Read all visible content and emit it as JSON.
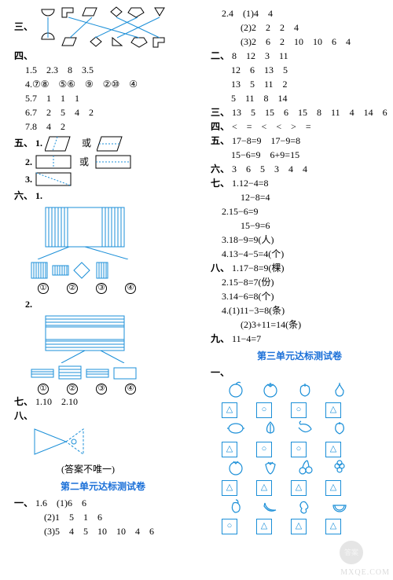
{
  "colors": {
    "ink": "#000000",
    "blue": "#1b8fd8",
    "blue_dark": "#1b70d8",
    "fill_hatch": "#9fd7e8",
    "bg": "#ffffff"
  },
  "left": {
    "sec3_label": "三、",
    "sec3_match": {
      "top_shapes": [
        "halfcircle",
        "Lshape",
        "parallelogram",
        "diamond",
        "pentagon",
        "triangle"
      ],
      "bottom_shapes": [
        "halfcircle_alt",
        "parallelogram_alt",
        "diamond_alt",
        "triangle_alt",
        "pentagon_alt",
        "Lshape_alt"
      ],
      "cross_lines": [
        [
          0,
          0
        ],
        [
          1,
          4
        ],
        [
          2,
          1
        ],
        [
          3,
          5
        ],
        [
          4,
          2
        ],
        [
          5,
          3
        ]
      ],
      "line_color": "#1b8fd8"
    },
    "sec4_label": "四、",
    "sec4_lines": [
      "1.5　2.3　8　3.5",
      "4.⑦⑧　⑤⑥　⑨　②⑩　④",
      "5.7　1　1　1",
      "6.7　2　5　4　2",
      "7.8　4　2"
    ],
    "sec5_label": "五、",
    "sec5": {
      "item1": {
        "label": "1.",
        "join": "或"
      },
      "item2": {
        "label": "2.",
        "join": "或"
      },
      "item3": {
        "label": "3."
      }
    },
    "sec6_label": "六、",
    "sec6": {
      "item1": {
        "label": "1."
      },
      "item1_options": [
        "①",
        "②",
        "③",
        "④"
      ],
      "item2": {
        "label": "2."
      },
      "item2_options": [
        "①",
        "②",
        "③",
        "④"
      ]
    },
    "sec7_label": "七、",
    "sec7_text": "1.10　2.10",
    "sec8_label": "八、",
    "sec8_answer_hint": "(答案不唯一)",
    "unit2_title": "第二单元达标测试卷",
    "unit2_sec1_label": "一、",
    "unit2_sec1_lines": [
      "1.6　(1)6　6",
      "　　(2)1　5　1　6",
      "　　(3)5　4　5　10　10　4　6"
    ]
  },
  "right": {
    "top_block": [
      "2.4　(1)4　4",
      "　　(2)2　2　2　4",
      "　　(3)2　6　2　10　10　6　4"
    ],
    "sec2_label": "二、",
    "sec2_lines": [
      "8　12　3　11",
      "12　6　13　5",
      "13　5　11　2",
      "5　11　8　14"
    ],
    "sec3_label": "三、",
    "sec3_text": "13　5　15　6　15　8　11　4　14　6",
    "sec4_label": "四、",
    "sec4_text": "<　=　<　<　>　=",
    "sec5_label": "五、",
    "sec5_lines": [
      "17−8=9　17−9=8",
      "15−6=9　6+9=15"
    ],
    "sec6_label": "六、",
    "sec6_text": "3　6　5　3　4　4",
    "sec7_label": "七、",
    "sec7_lines": [
      "1.12−4=8",
      "　12−8=4",
      "2.15−6=9",
      "　15−9=6",
      "3.18−9=9(人)",
      "4.13−4−5=4(个)"
    ],
    "sec8_label": "八、",
    "sec8_lines": [
      "1.17−8=9(棵)",
      "2.15−8=7(份)",
      "3.14−6=8(个)",
      "4.(1)11−3=8(条)",
      "　(2)3+11=14(条)"
    ],
    "sec9_label": "九、",
    "sec9_text": "11−4=7",
    "unit3_title": "第三单元达标测试卷",
    "unit3_sec1_label": "一、",
    "fruit_grid": {
      "rows": 4,
      "cols": 4,
      "fruits": [
        [
          "peach",
          "tomato",
          "bellpepper",
          "pear"
        ],
        [
          "lemon",
          "garlic",
          "chili",
          "apple"
        ],
        [
          "pomegranate",
          "strawberry",
          "cherry",
          "grape"
        ],
        [
          "eggplant",
          "banana",
          "peanut",
          "watermelon"
        ]
      ],
      "answers": [
        [
          "triangle",
          "circle",
          "circle",
          "triangle"
        ],
        [
          "triangle",
          "circle",
          "circle",
          "triangle"
        ],
        [
          "triangle",
          "triangle",
          "triangle",
          "triangle"
        ],
        [
          "circle",
          "triangle",
          "triangle",
          "triangle"
        ]
      ],
      "outline_color": "#1b8fd8"
    }
  },
  "watermark_text": "MXQE.COM",
  "watermark_badge": "答案"
}
